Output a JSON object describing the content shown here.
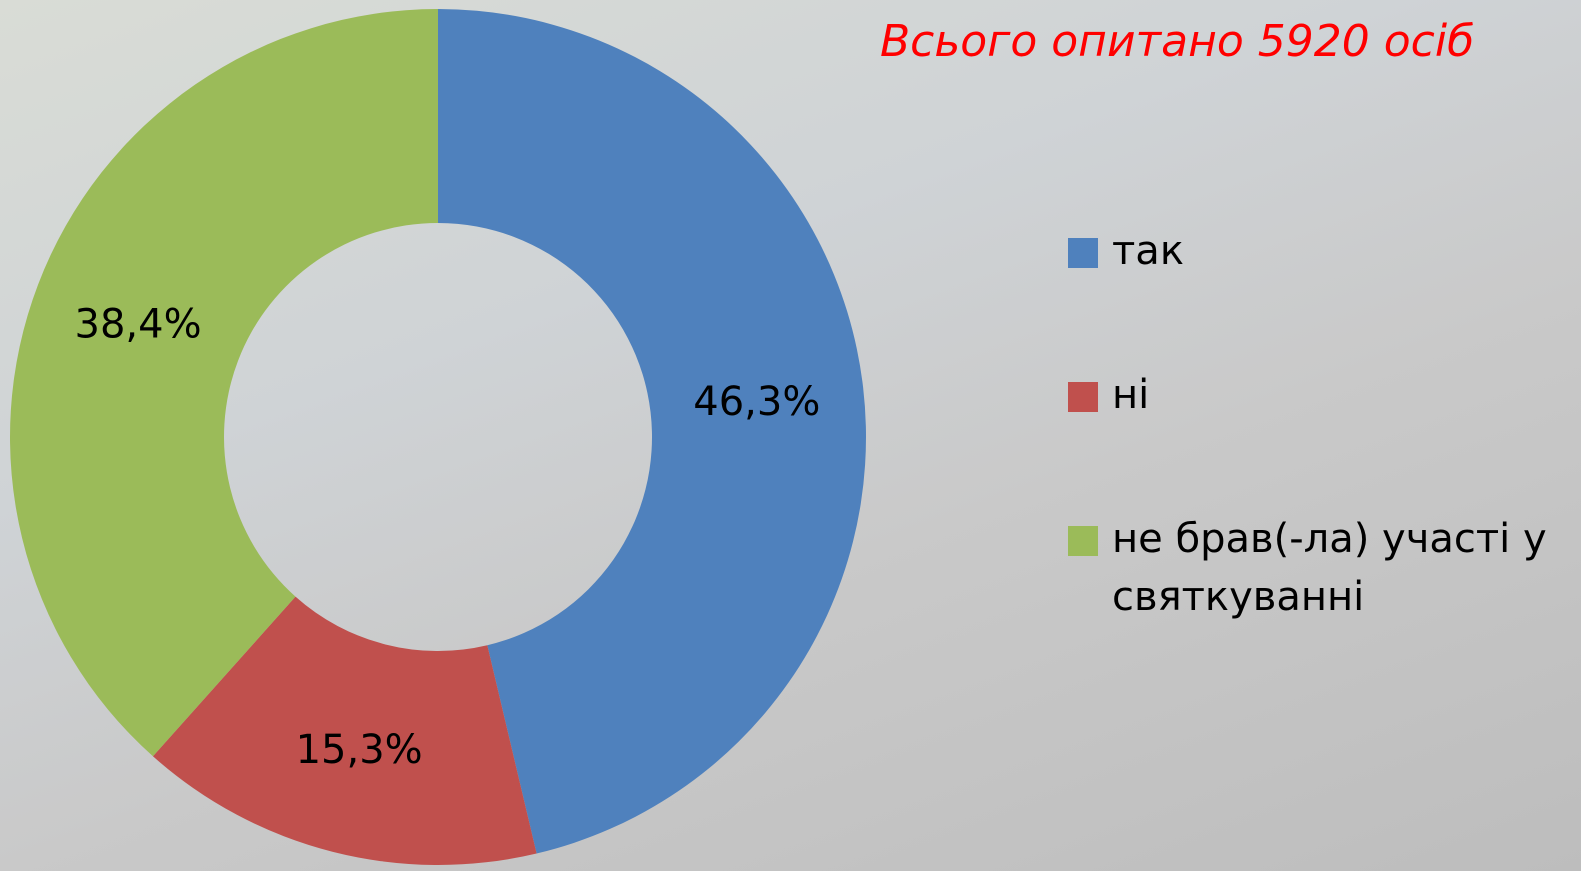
{
  "chart_data": {
    "type": "pie",
    "title": "Всього опитано 5920 осіб",
    "categories": [
      "так",
      "ні",
      "не брав(-ла) участі у святкуванні"
    ],
    "values": [
      46.3,
      15.3,
      38.4
    ],
    "value_labels": [
      "46,3%",
      "15,3%",
      "38,4%"
    ],
    "colors": [
      "#4f81bd",
      "#c0504d",
      "#9bbb59"
    ]
  }
}
